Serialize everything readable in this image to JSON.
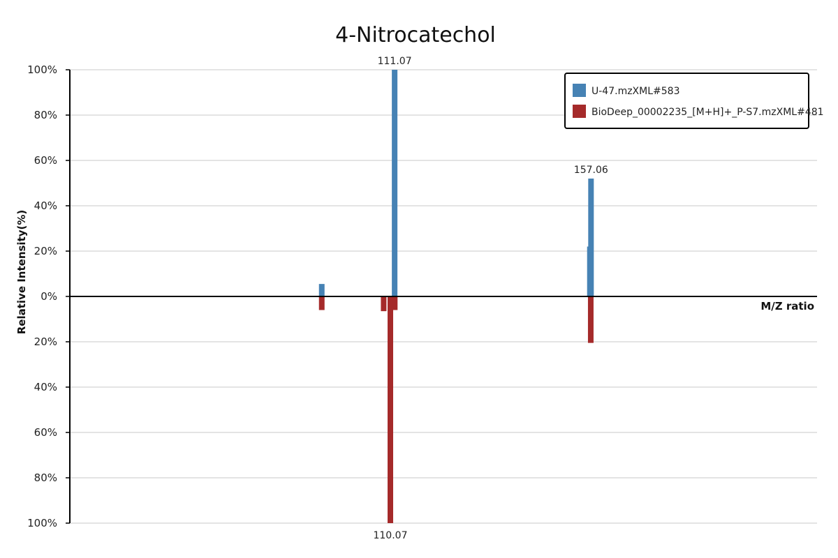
{
  "chart_data": {
    "type": "bar",
    "title": "4-Nitrocatechol",
    "xlabel": "M/Z ratio",
    "ylabel": "Relative Intensity(%)",
    "xlim": [
      35,
      210
    ],
    "ylim": [
      -100,
      100
    ],
    "y_ticks": [
      "100%",
      "80%",
      "60%",
      "40%",
      "20%",
      "0%",
      "20%",
      "40%",
      "60%",
      "80%",
      "100%"
    ],
    "grid": true,
    "legend_position": "top-right",
    "series": [
      {
        "name": "U-47.mzXML#583",
        "color": "#4682b4",
        "direction": "up",
        "peaks": [
          {
            "mz": 94.0,
            "intensity": 5.5
          },
          {
            "mz": 111.07,
            "intensity": 100,
            "label": "111.07"
          },
          {
            "mz": 156.8,
            "intensity": 22
          },
          {
            "mz": 157.06,
            "intensity": 52,
            "label": "157.06"
          }
        ]
      },
      {
        "name": "BioDeep_00002235_[M+H]+_P-S7.mzXML#481",
        "color": "#a52a2a",
        "direction": "down",
        "peaks": [
          {
            "mz": 94.0,
            "intensity": 6
          },
          {
            "mz": 108.5,
            "intensity": 6.5
          },
          {
            "mz": 110.07,
            "intensity": 100,
            "label": "110.07"
          },
          {
            "mz": 111.1,
            "intensity": 6
          },
          {
            "mz": 157.0,
            "intensity": 20.5
          }
        ]
      }
    ]
  }
}
